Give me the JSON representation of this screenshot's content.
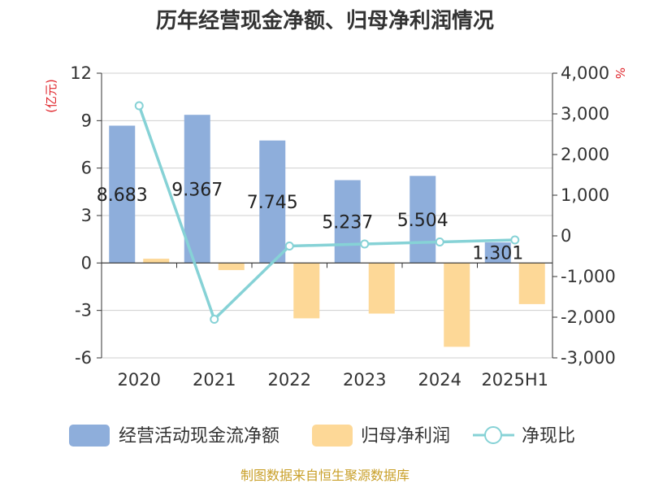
{
  "page_title": "历年经营现金净额、归母净利润情况",
  "source": "制图数据来自恒生聚源数据库",
  "chart_data": {
    "type": "bar",
    "title": "历年经营现金净额、归母净利润情况",
    "categories": [
      "2020",
      "2021",
      "2022",
      "2023",
      "2024",
      "2025H1"
    ],
    "y_left": {
      "unit": "(亿元)",
      "range": [
        -6,
        12
      ],
      "ticks": [
        "12",
        "9",
        "6",
        "3",
        "0",
        "-3",
        "-6"
      ],
      "tick_values": [
        12,
        9,
        6,
        3,
        0,
        -3,
        -6
      ]
    },
    "y_right": {
      "unit": "%",
      "range": [
        -3000,
        4000
      ],
      "ticks": [
        "4,000",
        "3,000",
        "2,000",
        "1,000",
        "0",
        "-1,000",
        "-2,000",
        "-3,000"
      ],
      "tick_values": [
        4000,
        3000,
        2000,
        1000,
        0,
        -1000,
        -2000,
        -3000
      ]
    },
    "series": [
      {
        "name": "经营活动现金流净额",
        "type": "bar",
        "axis": "left",
        "color": "#8eaedb",
        "values": [
          8.683,
          9.367,
          7.745,
          5.237,
          5.504,
          1.301
        ],
        "labels": [
          "8.683",
          "9.367",
          "7.745",
          "5.237",
          "5.504",
          "1.301"
        ]
      },
      {
        "name": "归母净利润",
        "type": "bar",
        "axis": "left",
        "color": "#fdd897",
        "values": [
          0.27,
          -0.45,
          -3.5,
          -3.2,
          -5.3,
          -2.6
        ]
      },
      {
        "name": "净现比",
        "type": "line",
        "axis": "right",
        "color": "#86d2d6",
        "values": [
          3200,
          -2050,
          -250,
          -200,
          -150,
          -100
        ]
      }
    ],
    "grid": true,
    "legend_position": "bottom"
  }
}
